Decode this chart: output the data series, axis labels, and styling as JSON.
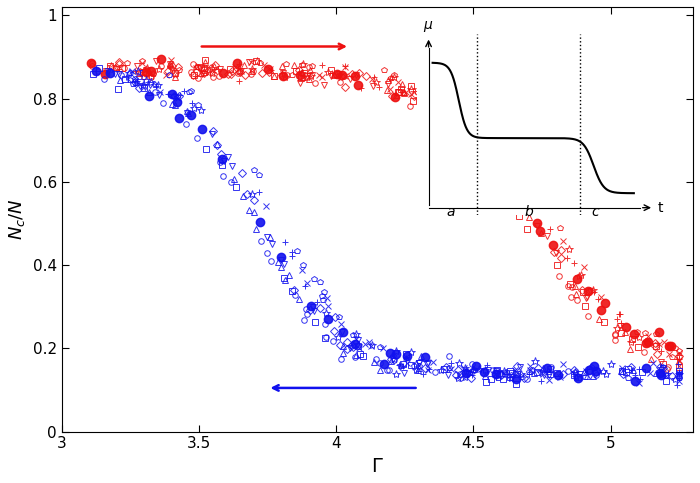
{
  "xlabel": "$\\Gamma$",
  "ylabel": "$N_c/N$",
  "xlim": [
    3.0,
    5.3
  ],
  "ylim": [
    0.0,
    1.02
  ],
  "xticks": [
    3.0,
    3.5,
    4.0,
    4.5,
    5.0
  ],
  "xticklabels": [
    "3",
    "3.5",
    "4",
    "4.5",
    "5"
  ],
  "yticks": [
    0.0,
    0.2,
    0.4,
    0.6,
    0.8,
    1.0
  ],
  "yticklabels": [
    "0",
    "0.2",
    "0.4",
    "0.6",
    "0.8",
    "1"
  ],
  "red": "#EE1111",
  "blue": "#1111EE",
  "inset_a": "a",
  "inset_b": "b",
  "inset_c": "c",
  "inset_t": "t",
  "inset_mu": "$\\mu$"
}
